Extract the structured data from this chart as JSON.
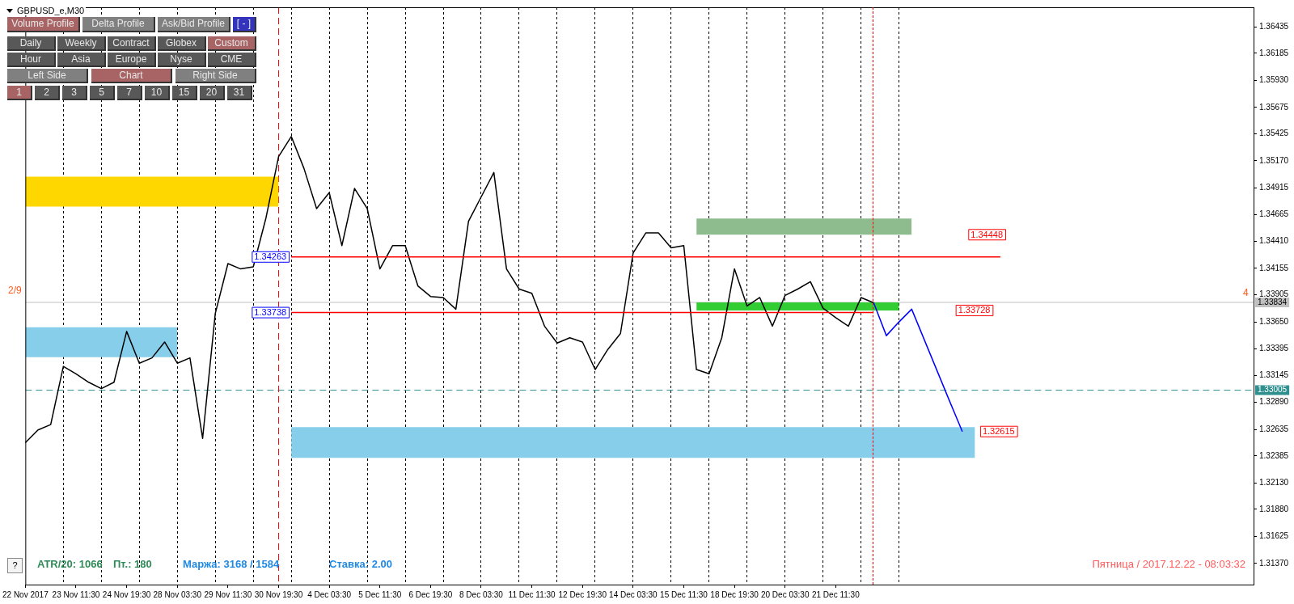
{
  "chart_data": {
    "type": "line",
    "title": "GBPUSD_e,M30",
    "marker": "none",
    "grid": "x",
    "legend": false,
    "categories": [
      "22 Nov 2017",
      null,
      null,
      null,
      "23 Nov 11:30",
      null,
      null,
      null,
      "24 Nov 19:30",
      null,
      null,
      null,
      "28 Nov 03:30",
      null,
      null,
      null,
      "29 Nov 11:30",
      null,
      null,
      null,
      "30 Nov 19:30",
      null,
      null,
      null,
      "4 Dec 03:30",
      null,
      null,
      null,
      "5 Dec 11:30",
      null,
      null,
      null,
      "6 Dec 19:30",
      null,
      null,
      null,
      "8 Dec 03:30",
      null,
      null,
      null,
      "11 Dec 11:30",
      null,
      null,
      null,
      "12 Dec 19:30",
      null,
      null,
      null,
      "14 Dec 03:30",
      null,
      null,
      null,
      "15 Dec 11:30",
      null,
      null,
      null,
      "18 Dec 19:30",
      null,
      null,
      null,
      "20 Dec 03:30",
      null,
      null,
      null,
      "21 Dec 11:30",
      null,
      null,
      null,
      null,
      null,
      null,
      null,
      null,
      null,
      null,
      null,
      null,
      null,
      null,
      null,
      null,
      null,
      null,
      null,
      null,
      null,
      null,
      null,
      null,
      null,
      null,
      null,
      null,
      null,
      null,
      null,
      null,
      null
    ],
    "ylim": [
      1.3117,
      1.3662
    ],
    "yticks": [
      1.36435,
      1.36185,
      {
        "value": 1.3593,
        "label": "1.35930"
      },
      1.35675,
      1.35425,
      {
        "value": 1.3517,
        "label": "1.35170"
      },
      1.34915,
      1.34665,
      {
        "value": 1.3441,
        "label": "1.34410"
      },
      1.34155,
      1.33905,
      {
        "value": 1.3365,
        "label": "1.33650"
      },
      1.33395,
      1.33145,
      {
        "value": 1.3289,
        "label": "1.32890"
      },
      1.32635,
      1.32385,
      {
        "value": 1.3213,
        "label": "1.32130"
      },
      {
        "value": 1.3188,
        "label": "1.31880"
      },
      1.31625,
      {
        "value": 1.3137,
        "label": "1.31370"
      }
    ],
    "series": [
      {
        "type": "area",
        "color": "#ffd700",
        "values": [
          null,
          null,
          null,
          null,
          null,
          null,
          null,
          null,
          null,
          null,
          null,
          null,
          null,
          null,
          null,
          null,
          null,
          null,
          null,
          null,
          null,
          null,
          null,
          null,
          null,
          null,
          null,
          null,
          null,
          null,
          null,
          null,
          null,
          null,
          null,
          null,
          null,
          null,
          null,
          null,
          null,
          null,
          null,
          null,
          null,
          null,
          null,
          null,
          null,
          null,
          null,
          null,
          null,
          null,
          null,
          null,
          null,
          null,
          null,
          null,
          null,
          null,
          null,
          null,
          null,
          null,
          null,
          null,
          null,
          null,
          null,
          null,
          null,
          null,
          null,
          null,
          null,
          null,
          null,
          null,
          null,
          null,
          null,
          null,
          null,
          null,
          null,
          null,
          null,
          null,
          null,
          null,
          null,
          null,
          null,
          null,
          null,
          null
        ],
        "lower": [
          1.34739,
          1.34739,
          1.34739,
          1.34739,
          1.34739,
          1.34739,
          1.34739,
          1.34739,
          1.34739,
          1.34739,
          1.34739,
          1.34739,
          1.34739,
          1.34739,
          1.34739,
          1.34739,
          1.34739,
          1.34739,
          1.34739,
          1.34739,
          1.34739,
          null,
          null,
          null,
          null,
          null,
          null,
          null,
          null,
          null,
          null,
          null,
          null,
          null,
          null,
          null,
          null,
          null,
          null,
          null,
          null,
          null,
          null,
          null,
          null,
          null,
          null,
          null,
          null,
          null,
          null,
          null,
          null,
          null,
          null,
          null,
          null,
          null,
          null,
          null,
          null,
          null,
          null,
          null,
          null,
          null,
          null,
          null,
          null,
          null,
          null,
          null,
          null,
          null,
          null,
          null,
          null,
          null,
          null,
          null,
          null,
          null,
          null,
          null,
          null,
          null,
          null,
          null,
          null,
          null,
          null,
          null,
          null,
          null,
          null,
          null,
          null,
          null
        ],
        "upper": [
          1.35021,
          1.35021,
          1.35021,
          1.35021,
          1.35021,
          1.35021,
          1.35021,
          1.35021,
          1.35021,
          1.35021,
          1.35021,
          1.35021,
          1.35021,
          1.35021,
          1.35021,
          1.35021,
          1.35021,
          1.35021,
          1.35021,
          1.35021,
          1.35021,
          null,
          null,
          null,
          null,
          null,
          null,
          null,
          null,
          null,
          null,
          null,
          null,
          null,
          null,
          null,
          null,
          null,
          null,
          null,
          null,
          null,
          null,
          null,
          null,
          null,
          null,
          null,
          null,
          null,
          null,
          null,
          null,
          null,
          null,
          null,
          null,
          null,
          null,
          null,
          null,
          null,
          null,
          null,
          null,
          null,
          null,
          null,
          null,
          null,
          null,
          null,
          null,
          null,
          null,
          null,
          null,
          null,
          null,
          null,
          null,
          null,
          null,
          null,
          null,
          null,
          null,
          null,
          null,
          null,
          null,
          null,
          null,
          null,
          null,
          null,
          null,
          null
        ]
      },
      {
        "type": "area",
        "color": "#87ceeb",
        "values": [
          null,
          null,
          null,
          null,
          null,
          null,
          null,
          null,
          null,
          null,
          null,
          null,
          null,
          null,
          null,
          null,
          null,
          null,
          null,
          null,
          null,
          null,
          null,
          null,
          null,
          null,
          null,
          null,
          null,
          null,
          null,
          null,
          null,
          null,
          null,
          null,
          null,
          null,
          null,
          null,
          null,
          null,
          null,
          null,
          null,
          null,
          null,
          null,
          null,
          null,
          null,
          null,
          null,
          null,
          null,
          null,
          null,
          null,
          null,
          null,
          null,
          null,
          null,
          null,
          null,
          null,
          null,
          null,
          null,
          null,
          null,
          null,
          null,
          null,
          null,
          null,
          null,
          null,
          null,
          null,
          null,
          null,
          null,
          null,
          null,
          null,
          null,
          null,
          null,
          null,
          null,
          null,
          null,
          null,
          null,
          null,
          null,
          null
        ],
        "lower": [
          1.33317,
          1.33317,
          1.33317,
          1.33317,
          1.33317,
          1.33317,
          1.33317,
          1.33317,
          1.33317,
          1.33317,
          1.33317,
          1.33317,
          1.33317,
          null,
          null,
          null,
          null,
          null,
          null,
          null,
          null,
          null,
          null,
          null,
          null,
          null,
          null,
          null,
          null,
          null,
          null,
          null,
          null,
          null,
          null,
          null,
          null,
          null,
          null,
          null,
          null,
          null,
          null,
          null,
          null,
          null,
          null,
          null,
          null,
          null,
          null,
          null,
          null,
          null,
          null,
          null,
          null,
          null,
          null,
          null,
          null,
          null,
          null,
          null,
          null,
          null,
          null,
          null,
          null,
          null,
          null,
          null,
          null,
          null,
          null,
          null,
          null,
          null,
          null,
          null,
          null,
          null,
          null,
          null,
          null,
          null,
          null,
          null,
          null,
          null,
          null,
          null,
          null,
          null,
          null,
          null,
          null,
          null
        ],
        "upper": [
          1.33599,
          1.33599,
          1.33599,
          1.33599,
          1.33599,
          1.33599,
          1.33599,
          1.33599,
          1.33599,
          1.33599,
          1.33599,
          1.33599,
          1.33599,
          null,
          null,
          null,
          null,
          null,
          null,
          null,
          null,
          null,
          null,
          null,
          null,
          null,
          null,
          null,
          null,
          null,
          null,
          null,
          null,
          null,
          null,
          null,
          null,
          null,
          null,
          null,
          null,
          null,
          null,
          null,
          null,
          null,
          null,
          null,
          null,
          null,
          null,
          null,
          null,
          null,
          null,
          null,
          null,
          null,
          null,
          null,
          null,
          null,
          null,
          null,
          null,
          null,
          null,
          null,
          null,
          null,
          null,
          null,
          null,
          null,
          null,
          null,
          null,
          null,
          null,
          null,
          null,
          null,
          null,
          null,
          null,
          null,
          null,
          null,
          null,
          null,
          null,
          null,
          null,
          null,
          null,
          null,
          null,
          null
        ]
      },
      {
        "type": "area",
        "color": "#8fbc8f",
        "values": [
          null,
          null,
          null,
          null,
          null,
          null,
          null,
          null,
          null,
          null,
          null,
          null,
          null,
          null,
          null,
          null,
          null,
          null,
          null,
          null,
          null,
          null,
          null,
          null,
          null,
          null,
          null,
          null,
          null,
          null,
          null,
          null,
          null,
          null,
          null,
          null,
          null,
          null,
          null,
          null,
          null,
          null,
          null,
          null,
          null,
          null,
          null,
          null,
          null,
          null,
          null,
          null,
          null,
          null,
          null,
          null,
          null,
          null,
          null,
          null,
          null,
          null,
          null,
          null,
          null,
          null,
          null,
          null,
          null,
          null,
          null,
          null,
          null,
          null,
          null,
          null,
          null,
          null,
          null,
          null,
          null,
          null,
          null,
          null,
          null,
          null,
          null,
          null,
          null,
          null,
          null,
          null,
          null,
          null,
          null,
          null,
          null,
          null
        ],
        "lower": [
          null,
          null,
          null,
          null,
          null,
          null,
          null,
          null,
          null,
          null,
          null,
          null,
          null,
          null,
          null,
          null,
          null,
          null,
          null,
          null,
          null,
          null,
          null,
          null,
          null,
          null,
          null,
          null,
          null,
          null,
          null,
          null,
          null,
          null,
          null,
          null,
          null,
          null,
          null,
          null,
          null,
          null,
          null,
          null,
          null,
          null,
          null,
          null,
          null,
          null,
          null,
          null,
          null,
          1.34473,
          1.34473,
          1.34473,
          1.34473,
          1.34473,
          1.34473,
          1.34473,
          1.34473,
          1.34473,
          1.34473,
          1.34473,
          1.34473,
          1.34473,
          1.34473,
          1.34473,
          1.34473,
          1.34473,
          1.34473,
          null,
          null,
          null,
          null,
          null,
          null,
          null,
          null,
          null,
          null,
          null,
          null,
          null,
          null,
          null,
          null,
          null,
          null,
          null,
          null,
          null,
          null,
          null,
          null,
          null,
          null,
          null
        ],
        "upper": [
          null,
          null,
          null,
          null,
          null,
          null,
          null,
          null,
          null,
          null,
          null,
          null,
          null,
          null,
          null,
          null,
          null,
          null,
          null,
          null,
          null,
          null,
          null,
          null,
          null,
          null,
          null,
          null,
          null,
          null,
          null,
          null,
          null,
          null,
          null,
          null,
          null,
          null,
          null,
          null,
          null,
          null,
          null,
          null,
          null,
          null,
          null,
          null,
          null,
          null,
          null,
          null,
          null,
          1.34625,
          1.34625,
          1.34625,
          1.34625,
          1.34625,
          1.34625,
          1.34625,
          1.34625,
          1.34625,
          1.34625,
          1.34625,
          1.34625,
          1.34625,
          1.34625,
          1.34625,
          1.34625,
          1.34625,
          1.34625,
          null,
          null,
          null,
          null,
          null,
          null,
          null,
          null,
          null,
          null,
          null,
          null,
          null,
          null,
          null,
          null,
          null,
          null,
          null,
          null,
          null,
          null,
          null,
          null,
          null,
          null,
          null
        ]
      },
      {
        "type": "area",
        "color": "#32cd32",
        "values": [
          null,
          null,
          null,
          null,
          null,
          null,
          null,
          null,
          null,
          null,
          null,
          null,
          null,
          null,
          null,
          null,
          null,
          null,
          null,
          null,
          null,
          null,
          null,
          null,
          null,
          null,
          null,
          null,
          null,
          null,
          null,
          null,
          null,
          null,
          null,
          null,
          null,
          null,
          null,
          null,
          null,
          null,
          null,
          null,
          null,
          null,
          null,
          null,
          null,
          null,
          null,
          null,
          null,
          null,
          null,
          null,
          null,
          null,
          null,
          null,
          null,
          null,
          null,
          null,
          null,
          null,
          null,
          null,
          null,
          null,
          null,
          null,
          null,
          null,
          null,
          null,
          null,
          null,
          null,
          null,
          null,
          null,
          null,
          null,
          null,
          null,
          null,
          null,
          null,
          null,
          null,
          null,
          null,
          null,
          null,
          null,
          null,
          null
        ],
        "lower": [
          null,
          null,
          null,
          null,
          null,
          null,
          null,
          null,
          null,
          null,
          null,
          null,
          null,
          null,
          null,
          null,
          null,
          null,
          null,
          null,
          null,
          null,
          null,
          null,
          null,
          null,
          null,
          null,
          null,
          null,
          null,
          null,
          null,
          null,
          null,
          null,
          null,
          null,
          null,
          null,
          null,
          null,
          null,
          null,
          null,
          null,
          null,
          null,
          null,
          null,
          null,
          null,
          null,
          1.33758,
          1.33758,
          1.33758,
          1.33758,
          1.33758,
          1.33758,
          1.33758,
          1.33758,
          1.33758,
          1.33758,
          1.33758,
          1.33758,
          1.33758,
          1.33758,
          1.33758,
          1.33758,
          1.33758,
          null,
          null,
          null,
          null,
          null,
          null,
          null,
          null,
          null,
          null,
          null,
          null,
          null,
          null,
          null,
          null,
          null,
          null,
          null,
          null,
          null,
          null,
          null,
          null,
          null,
          null,
          null,
          null
        ],
        "upper": [
          null,
          null,
          null,
          null,
          null,
          null,
          null,
          null,
          null,
          null,
          null,
          null,
          null,
          null,
          null,
          null,
          null,
          null,
          null,
          null,
          null,
          null,
          null,
          null,
          null,
          null,
          null,
          null,
          null,
          null,
          null,
          null,
          null,
          null,
          null,
          null,
          null,
          null,
          null,
          null,
          null,
          null,
          null,
          null,
          null,
          null,
          null,
          null,
          null,
          null,
          null,
          null,
          null,
          1.33834,
          1.33834,
          1.33834,
          1.33834,
          1.33834,
          1.33834,
          1.33834,
          1.33834,
          1.33834,
          1.33834,
          1.33834,
          1.33834,
          1.33834,
          1.33834,
          1.33834,
          1.33834,
          1.33834,
          null,
          null,
          null,
          null,
          null,
          null,
          null,
          null,
          null,
          null,
          null,
          null,
          null,
          null,
          null,
          null,
          null,
          null,
          null,
          null,
          null,
          null,
          null,
          null,
          null,
          null,
          null,
          null
        ]
      },
      {
        "type": "area",
        "color": "#87ceeb",
        "values": [
          null,
          null,
          null,
          null,
          null,
          null,
          null,
          null,
          null,
          null,
          null,
          null,
          null,
          null,
          null,
          null,
          null,
          null,
          null,
          null,
          null,
          null,
          null,
          null,
          null,
          null,
          null,
          null,
          null,
          null,
          null,
          null,
          null,
          null,
          null,
          null,
          null,
          null,
          null,
          null,
          null,
          null,
          null,
          null,
          null,
          null,
          null,
          null,
          null,
          null,
          null,
          null,
          null,
          null,
          null,
          null,
          null,
          null,
          null,
          null,
          null,
          null,
          null,
          null,
          null,
          null,
          null,
          null,
          null,
          null,
          null,
          null,
          null,
          null,
          null,
          null,
          null,
          null,
          null,
          null,
          null,
          null,
          null,
          null,
          null,
          null,
          null,
          null,
          null,
          null,
          null,
          null,
          null,
          null,
          null,
          null,
          null,
          null
        ],
        "lower": [
          null,
          null,
          null,
          null,
          null,
          null,
          null,
          null,
          null,
          null,
          null,
          null,
          null,
          null,
          null,
          null,
          null,
          null,
          null,
          null,
          null,
          1.32367,
          1.32367,
          1.32367,
          1.32367,
          1.32367,
          1.32367,
          1.32367,
          1.32367,
          1.32367,
          1.32367,
          1.32367,
          1.32367,
          1.32367,
          1.32367,
          1.32367,
          1.32367,
          1.32367,
          1.32367,
          1.32367,
          1.32367,
          1.32367,
          1.32367,
          1.32367,
          1.32367,
          1.32367,
          1.32367,
          1.32367,
          1.32367,
          1.32367,
          1.32367,
          1.32367,
          1.32367,
          1.32367,
          1.32367,
          1.32367,
          1.32367,
          1.32367,
          1.32367,
          1.32367,
          1.32367,
          1.32367,
          1.32367,
          1.32367,
          1.32367,
          1.32367,
          1.32367,
          1.32367,
          1.32367,
          1.32367,
          1.32367,
          1.32367,
          1.32367,
          1.32367,
          1.32367,
          1.32367,
          null,
          null,
          null,
          null,
          null,
          null,
          null,
          null,
          null,
          null,
          null,
          null,
          null,
          null,
          null,
          null,
          null,
          null,
          null,
          null,
          null,
          null
        ],
        "upper": [
          null,
          null,
          null,
          null,
          null,
          null,
          null,
          null,
          null,
          null,
          null,
          null,
          null,
          null,
          null,
          null,
          null,
          null,
          null,
          null,
          null,
          1.32656,
          1.32656,
          1.32656,
          1.32656,
          1.32656,
          1.32656,
          1.32656,
          1.32656,
          1.32656,
          1.32656,
          1.32656,
          1.32656,
          1.32656,
          1.32656,
          1.32656,
          1.32656,
          1.32656,
          1.32656,
          1.32656,
          1.32656,
          1.32656,
          1.32656,
          1.32656,
          1.32656,
          1.32656,
          1.32656,
          1.32656,
          1.32656,
          1.32656,
          1.32656,
          1.32656,
          1.32656,
          1.32656,
          1.32656,
          1.32656,
          1.32656,
          1.32656,
          1.32656,
          1.32656,
          1.32656,
          1.32656,
          1.32656,
          1.32656,
          1.32656,
          1.32656,
          1.32656,
          1.32656,
          1.32656,
          1.32656,
          1.32656,
          1.32656,
          1.32656,
          1.32656,
          1.32656,
          1.32656,
          null,
          null,
          null,
          null,
          null,
          null,
          null,
          null,
          null,
          null,
          null,
          null,
          null,
          null,
          null,
          null,
          null,
          null,
          null,
          null,
          null,
          null
        ]
      },
      {
        "color": "#ff0000",
        "values": [
          null,
          null,
          null,
          null,
          null,
          null,
          null,
          null,
          null,
          null,
          null,
          null,
          null,
          null,
          null,
          null,
          null,
          null,
          null,
          null,
          null,
          1.34263,
          1.34263,
          1.34263,
          1.34263,
          1.34263,
          1.34263,
          1.34263,
          1.34263,
          1.34263,
          1.34263,
          1.34263,
          1.34263,
          1.34263,
          1.34263,
          1.34263,
          1.34263,
          1.34263,
          1.34263,
          1.34263,
          1.34263,
          1.34263,
          1.34263,
          1.34263,
          1.34263,
          1.34263,
          1.34263,
          1.34263,
          1.34263,
          1.34263,
          1.34263,
          1.34263,
          1.34263,
          1.34263,
          1.34263,
          1.34263,
          1.34263,
          1.34263,
          1.34263,
          1.34263,
          1.34263,
          1.34263,
          1.34263,
          1.34263,
          1.34263,
          1.34263,
          1.34263,
          1.34263,
          1.34263,
          1.34263,
          1.34263,
          1.34263,
          1.34263,
          1.34263,
          1.34263,
          1.34263,
          1.34263,
          1.34263,
          null,
          null,
          null,
          null,
          null,
          null,
          null,
          null,
          null,
          null,
          null,
          null,
          null,
          null,
          null,
          null,
          null,
          null,
          null,
          null
        ]
      },
      {
        "color": "#ff0000",
        "values": [
          null,
          null,
          null,
          null,
          null,
          null,
          null,
          null,
          null,
          null,
          null,
          null,
          null,
          null,
          null,
          null,
          null,
          null,
          null,
          null,
          null,
          1.33738,
          1.33738,
          1.33738,
          1.33738,
          1.33738,
          1.33738,
          1.33738,
          1.33738,
          1.33738,
          1.33738,
          1.33738,
          1.33738,
          1.33738,
          1.33738,
          1.33738,
          1.33738,
          1.33738,
          1.33738,
          1.33738,
          1.33738,
          1.33738,
          1.33738,
          1.33738,
          1.33738,
          1.33738,
          1.33738,
          1.33738,
          1.33738,
          1.33738,
          1.33738,
          1.33738,
          1.33738,
          1.33738,
          1.33738,
          1.33738,
          1.33738,
          1.33738,
          1.33738,
          1.33738,
          1.33738,
          1.33738,
          1.33738,
          1.33738,
          1.33738,
          1.33738,
          1.33738,
          1.33738,
          null,
          null,
          null,
          null,
          null,
          null,
          null,
          null,
          null,
          null,
          null,
          null,
          null,
          null,
          null,
          null,
          null,
          null,
          null,
          null,
          null,
          null,
          null,
          null,
          null,
          null,
          null,
          null,
          null,
          null
        ]
      },
      {
        "color": "#000000",
        "values": [
          1.3251,
          1.3263,
          1.3268,
          1.3323,
          1.3316,
          1.3308,
          1.3302,
          1.3308,
          1.3356,
          1.3326,
          1.3331,
          1.3346,
          1.3326,
          1.3331,
          1.3255,
          1.3373,
          1.342,
          1.3415,
          1.3417,
          1.3463,
          1.3521,
          1.354,
          1.351,
          1.3472,
          1.3487,
          1.3437,
          1.3491,
          1.3472,
          1.3415,
          1.3437,
          1.3437,
          1.3399,
          1.3389,
          1.3388,
          1.3377,
          1.346,
          1.3483,
          1.3506,
          1.3415,
          1.3396,
          1.3392,
          1.3361,
          1.3345,
          1.335,
          1.3346,
          1.332,
          1.3339,
          1.3354,
          1.343,
          1.3449,
          1.3449,
          1.3435,
          1.3437,
          1.332,
          1.3316,
          1.335,
          1.3415,
          1.338,
          1.3388,
          1.3361,
          1.339,
          1.3396,
          1.3403,
          1.3378,
          1.3369,
          1.3361,
          1.3388,
          1.3383,
          null,
          null,
          null,
          null,
          null,
          null,
          null,
          null,
          null,
          null,
          null,
          null,
          null,
          null,
          null,
          null,
          null,
          null,
          null,
          null,
          null,
          null,
          null,
          null,
          null,
          null,
          null,
          null,
          null,
          null
        ]
      },
      {
        "color": "#0000ff",
        "values": [
          null,
          null,
          null,
          null,
          null,
          null,
          null,
          null,
          null,
          null,
          null,
          null,
          null,
          null,
          null,
          null,
          null,
          null,
          null,
          null,
          null,
          null,
          null,
          null,
          null,
          null,
          null,
          null,
          null,
          null,
          null,
          null,
          null,
          null,
          null,
          null,
          null,
          null,
          null,
          null,
          null,
          null,
          null,
          null,
          null,
          null,
          null,
          null,
          null,
          null,
          null,
          null,
          null,
          null,
          null,
          null,
          null,
          null,
          null,
          null,
          null,
          null,
          null,
          null,
          null,
          null,
          null,
          1.3383,
          1.3352,
          1.3365,
          1.3377,
          1.3348,
          1.3319,
          1.329,
          1.32615,
          null,
          null,
          null,
          null,
          null,
          null,
          null,
          null,
          null,
          null,
          null,
          null,
          null,
          null,
          null,
          null,
          null,
          null,
          null,
          null,
          null,
          null,
          null
        ]
      }
    ],
    "ref_lines": [
      {
        "axis": "y",
        "value": 1.33834,
        "label": "1.33834",
        "color": "#c0c0c0"
      },
      {
        "axis": "y",
        "value": 1.33005,
        "label": "1.33005",
        "color": "#2f8f8f",
        "line_style": "dashed"
      },
      {
        "axis": "x",
        "value": "30 Nov 19:30",
        "color": "#ff0000",
        "line_style": "dashed"
      }
    ],
    "annotations": [
      "2/9",
      "4",
      "Volume Profile",
      "Delta Profile",
      "Ask/Bid Profile",
      "[ - ]",
      "Daily",
      "Weekly",
      "Contract",
      "Globex",
      "Custom",
      "Hour",
      "Asia",
      "Europe",
      "Nyse",
      "CME",
      "Left Side",
      "Chart",
      "Right Side",
      "1",
      "2",
      "3",
      "5",
      "7",
      "10",
      "15",
      "20",
      "31",
      "?",
      "ATR/20: 1066",
      "Пт.: 180",
      "Маржа: 3168 / 1584",
      "Ставка: 2.00",
      "Пятница  /  2017.12.22  -  08:03:32",
      "1.34263",
      "1.33738",
      "1.34448",
      "1.33728",
      "1.32615"
    ]
  }
}
